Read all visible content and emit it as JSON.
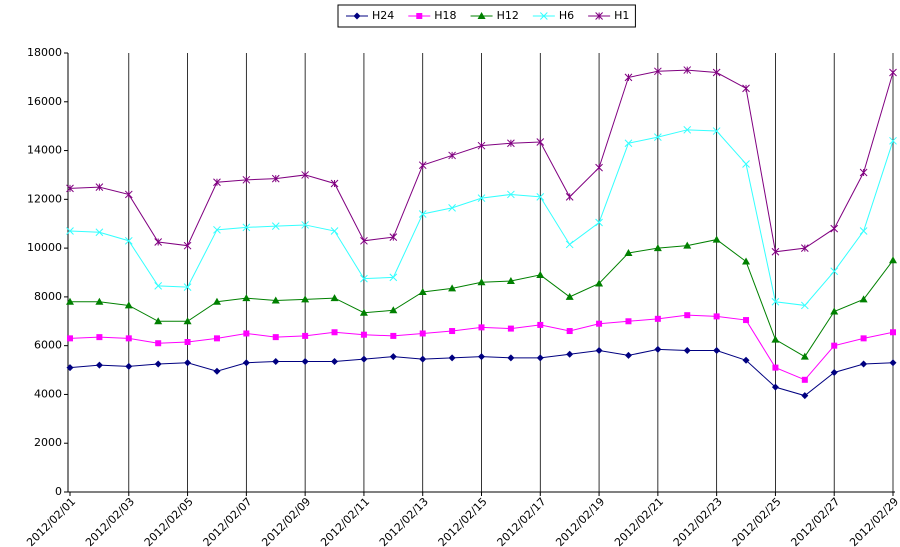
{
  "chart_data": {
    "type": "line",
    "categories": [
      "2012/02/01",
      null,
      "2012/02/03",
      null,
      "2012/02/05",
      null,
      "2012/02/07",
      null,
      "2012/02/09",
      null,
      "2012/02/11",
      null,
      "2012/02/13",
      null,
      "2012/02/15",
      null,
      "2012/02/17",
      null,
      "2012/02/19",
      null,
      "2012/02/21",
      null,
      "2012/02/23",
      null,
      "2012/02/25",
      null,
      "2012/02/27",
      null,
      "2012/02/29"
    ],
    "series": [
      {
        "name": "H24",
        "color": "#000080",
        "marker": "diamond",
        "values": [
          5100,
          5200,
          5150,
          5250,
          5300,
          4950,
          5300,
          5350,
          5350,
          5350,
          5450,
          5550,
          5450,
          5500,
          5550,
          5500,
          5500,
          5650,
          5800,
          5600,
          5850,
          5800,
          5800,
          5400,
          4300,
          3950,
          4900,
          5250,
          5300
        ]
      },
      {
        "name": "H18",
        "color": "#ff00ff",
        "marker": "square",
        "values": [
          6300,
          6350,
          6300,
          6100,
          6150,
          6300,
          6500,
          6350,
          6400,
          6550,
          6450,
          6400,
          6500,
          6600,
          6750,
          6700,
          6850,
          6600,
          6900,
          7000,
          7100,
          7250,
          7200,
          7050,
          5100,
          4600,
          6000,
          6300,
          6550
        ]
      },
      {
        "name": "H12",
        "color": "#008000",
        "marker": "triangle",
        "values": [
          7800,
          7800,
          7650,
          7000,
          7000,
          7800,
          7950,
          7850,
          7900,
          7950,
          7350,
          7450,
          8200,
          8350,
          8600,
          8650,
          8900,
          8000,
          8550,
          9800,
          10000,
          10100,
          10350,
          9450,
          6250,
          5550,
          7400,
          7900,
          9500
        ]
      },
      {
        "name": "H6",
        "color": "#33ffff",
        "marker": "x",
        "values": [
          10700,
          10650,
          10300,
          8450,
          8400,
          10750,
          10850,
          10900,
          10950,
          10700,
          8750,
          8800,
          11400,
          11650,
          12050,
          12200,
          12100,
          10150,
          11050,
          14300,
          14550,
          14850,
          14800,
          13450,
          7800,
          7650,
          9050,
          10700,
          14400
        ]
      },
      {
        "name": "H1",
        "color": "#800080",
        "marker": "star",
        "values": [
          12450,
          12500,
          12200,
          10250,
          10100,
          12700,
          12800,
          12850,
          13000,
          12650,
          10300,
          10450,
          13400,
          13800,
          14200,
          14300,
          14350,
          12100,
          13300,
          17000,
          17250,
          17300,
          17200,
          16550,
          9850,
          10000,
          10800,
          13100,
          17200
        ]
      }
    ],
    "ylim": [
      0,
      18000
    ],
    "yticks": [
      0,
      2000,
      4000,
      6000,
      8000,
      10000,
      12000,
      14000,
      16000,
      18000
    ],
    "grid": "x",
    "legend": "top"
  }
}
